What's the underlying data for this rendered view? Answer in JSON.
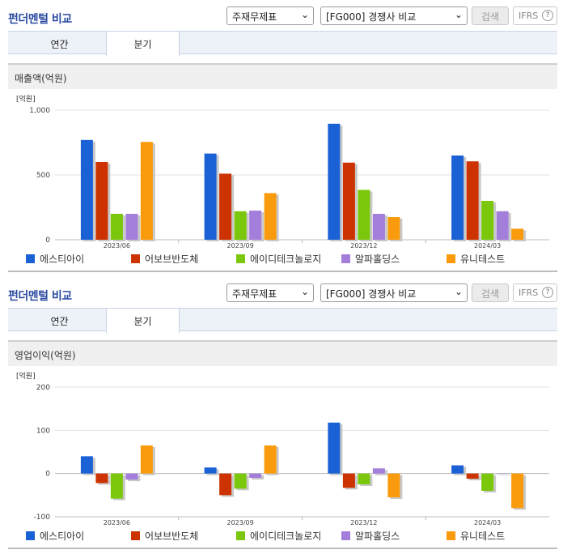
{
  "panels": [
    {
      "title": "펀더멘털 비교",
      "select_1": "주재무제표",
      "select_2": "[FG000] 경쟁사 비교",
      "search_label": "검색",
      "ifrs_label": "IFRS",
      "help_label": "?",
      "tabs": [
        "연간",
        "분기"
      ],
      "active_tab": "분기",
      "section_title": "매출액(억원)"
    },
    {
      "title": "펀더멘털 비교",
      "select_1": "주재무제표",
      "select_2": "[FG000] 경쟁사 비교",
      "search_label": "검색",
      "ifrs_label": "IFRS",
      "help_label": "?",
      "tabs": [
        "연간",
        "분기"
      ],
      "active_tab": "분기",
      "section_title": "영업이익(억원)"
    }
  ],
  "chart_data": [
    {
      "type": "bar",
      "title": "매출액(억원)",
      "unit_label": "[억원]",
      "categories": [
        "2023/06",
        "2023/09",
        "2023/12",
        "2024/03"
      ],
      "ylim": [
        0,
        1000
      ],
      "yticks": [
        0,
        500,
        1000
      ],
      "ytick_labels": [
        "0",
        "500",
        "1,000"
      ],
      "grid": true,
      "legend_position": "bottom",
      "series": [
        {
          "name": "에스티아이",
          "color": "#1a61d6",
          "values": [
            770,
            665,
            895,
            650
          ]
        },
        {
          "name": "어보브반도체",
          "color": "#cc3300",
          "values": [
            600,
            510,
            595,
            605
          ]
        },
        {
          "name": "에이디테크놀로지",
          "color": "#7ac70c",
          "values": [
            200,
            220,
            385,
            300
          ]
        },
        {
          "name": "알파홀딩스",
          "color": "#a37fdb",
          "values": [
            200,
            225,
            200,
            220
          ]
        },
        {
          "name": "유니테스트",
          "color": "#f99b0c",
          "values": [
            755,
            360,
            175,
            85
          ]
        }
      ]
    },
    {
      "type": "bar",
      "title": "영업이익(억원)",
      "unit_label": "[억원]",
      "categories": [
        "2023/06",
        "2023/09",
        "2023/12",
        "2024/03"
      ],
      "ylim": [
        -100,
        200
      ],
      "yticks": [
        -100,
        0,
        100,
        200
      ],
      "ytick_labels": [
        "-100",
        "0",
        "100",
        "200"
      ],
      "grid": true,
      "legend_position": "bottom",
      "series": [
        {
          "name": "에스티아이",
          "color": "#1a61d6",
          "values": [
            40,
            14,
            118,
            19
          ]
        },
        {
          "name": "어보브반도체",
          "color": "#cc3300",
          "values": [
            -22,
            -50,
            -33,
            -12
          ]
        },
        {
          "name": "에이디테크놀로지",
          "color": "#7ac70c",
          "values": [
            -58,
            -35,
            -25,
            -40
          ]
        },
        {
          "name": "알파홀딩스",
          "color": "#a37fdb",
          "values": [
            -14,
            -10,
            12,
            0
          ]
        },
        {
          "name": "유니테스트",
          "color": "#f99b0c",
          "values": [
            65,
            65,
            -55,
            -80
          ]
        }
      ]
    }
  ]
}
